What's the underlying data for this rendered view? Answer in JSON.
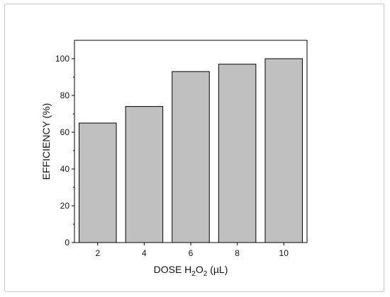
{
  "chart_data": {
    "type": "bar",
    "categories": [
      "2",
      "4",
      "6",
      "8",
      "10"
    ],
    "values": [
      65,
      74,
      93,
      97,
      100
    ],
    "ylim": [
      0,
      110
    ],
    "yticks": [
      "0",
      "20",
      "40",
      "60",
      "80",
      "100"
    ],
    "ylabel": "EFFICIENCY (%)",
    "xlabel": {
      "prefix": "DOSE H",
      "sub1": "2",
      "mid": "O",
      "sub2": "2",
      "suffix": " (µL)"
    },
    "grid": false,
    "legend": "none",
    "bar_color": "#c0c0c0",
    "bar_edge_color": "#000000"
  }
}
